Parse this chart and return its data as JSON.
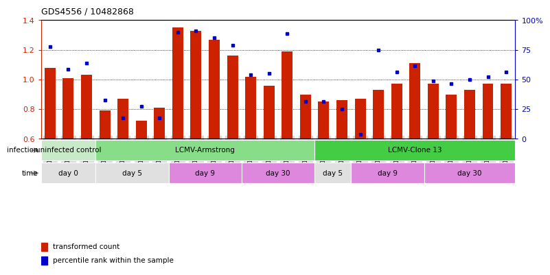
{
  "title": "GDS4556 / 10482868",
  "samples": [
    "GSM1083152",
    "GSM1083153",
    "GSM1083154",
    "GSM1083155",
    "GSM1083156",
    "GSM1083157",
    "GSM1083158",
    "GSM1083159",
    "GSM1083160",
    "GSM1083161",
    "GSM1083162",
    "GSM1083163",
    "GSM1083164",
    "GSM1083165",
    "GSM1083166",
    "GSM1083167",
    "GSM1083168",
    "GSM1083169",
    "GSM1083170",
    "GSM1083171",
    "GSM1083172",
    "GSM1083173",
    "GSM1083174",
    "GSM1083175",
    "GSM1083176",
    "GSM1083177"
  ],
  "red_values": [
    1.08,
    1.01,
    1.03,
    0.79,
    0.87,
    0.72,
    0.81,
    1.35,
    1.33,
    1.27,
    1.16,
    1.02,
    0.96,
    1.19,
    0.9,
    0.85,
    0.86,
    0.87,
    0.93,
    0.97,
    1.11,
    0.97,
    0.9,
    0.93,
    0.97,
    0.97
  ],
  "blue_values": [
    1.22,
    1.07,
    1.11,
    0.86,
    0.74,
    0.82,
    0.74,
    1.32,
    1.33,
    1.28,
    1.23,
    1.03,
    1.04,
    1.31,
    0.85,
    0.85,
    0.8,
    0.63,
    1.2,
    1.05,
    1.09,
    0.99,
    0.97,
    1.0,
    1.02,
    1.05
  ],
  "y_min": 0.6,
  "y_max": 1.4,
  "y_ticks": [
    0.6,
    0.8,
    1.0,
    1.2,
    1.4
  ],
  "y2_ticks": [
    0,
    25,
    50,
    75,
    100
  ],
  "y2_labels": [
    "0",
    "25",
    "50",
    "75",
    "100%"
  ],
  "bar_color": "#cc2200",
  "square_color": "#0000cc",
  "background_color": "#ffffff",
  "tick_bg_color": "#d8d8d8",
  "infection_groups": [
    {
      "label": "uninfected control",
      "start": 0,
      "end": 3,
      "color": "#c8eac8"
    },
    {
      "label": "LCMV-Armstrong",
      "start": 3,
      "end": 15,
      "color": "#88dd88"
    },
    {
      "label": "LCMV-Clone 13",
      "start": 15,
      "end": 26,
      "color": "#44cc44"
    }
  ],
  "time_groups": [
    {
      "label": "day 0",
      "start": 0,
      "end": 3,
      "color": "#e8e8e8"
    },
    {
      "label": "day 5",
      "start": 3,
      "end": 7,
      "color": "#e8e8e8"
    },
    {
      "label": "day 9",
      "start": 7,
      "end": 11,
      "color": "#dd88dd"
    },
    {
      "label": "day 30",
      "start": 11,
      "end": 15,
      "color": "#dd88dd"
    },
    {
      "label": "day 5",
      "start": 15,
      "end": 17,
      "color": "#e8e8e8"
    },
    {
      "label": "day 9",
      "start": 17,
      "end": 21,
      "color": "#dd88dd"
    },
    {
      "label": "day 30",
      "start": 21,
      "end": 26,
      "color": "#dd88dd"
    }
  ],
  "legend_items": [
    {
      "label": "transformed count",
      "color": "#cc2200"
    },
    {
      "label": "percentile rank within the sample",
      "color": "#0000cc"
    }
  ]
}
